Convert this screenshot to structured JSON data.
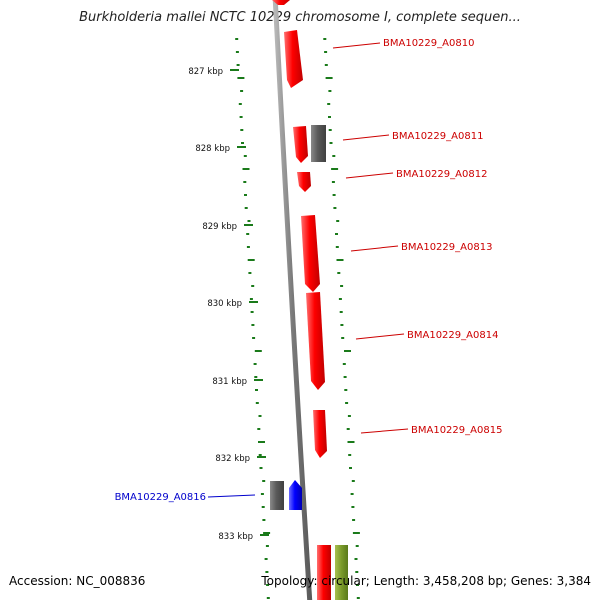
{
  "title": "Burkholderia mallei NCTC 10229 chromosome I, complete sequen...",
  "footer": {
    "accession": "Accession: NC_008836",
    "topology": "Topology: circular; Length: 3,458,208 bp; Genes: 3,384"
  },
  "ticks": [
    "827 kbp",
    "828 kbp",
    "829 kbp",
    "830 kbp",
    "831 kbp",
    "832 kbp",
    "833 kbp"
  ],
  "gene_labels": [
    {
      "text": "BMA10229_A0810",
      "color": "#cc0000"
    },
    {
      "text": "BMA10229_A0811",
      "color": "#cc0000"
    },
    {
      "text": "BMA10229_A0812",
      "color": "#cc0000"
    },
    {
      "text": "BMA10229_A0813",
      "color": "#cc0000"
    },
    {
      "text": "BMA10229_A0814",
      "color": "#cc0000"
    },
    {
      "text": "BMA10229_A0815",
      "color": "#cc0000"
    },
    {
      "text": "BMA10229_A0816",
      "color": "#0000cc"
    }
  ],
  "colors": {
    "backbone": "#8c8c8c",
    "cds_forward": "#ff0000",
    "cds_reverse": "#0000ff",
    "gene_block": "#5a5a5a",
    "other_feature": "#7a9a2a",
    "gc_marks": "#1a7a1a"
  }
}
